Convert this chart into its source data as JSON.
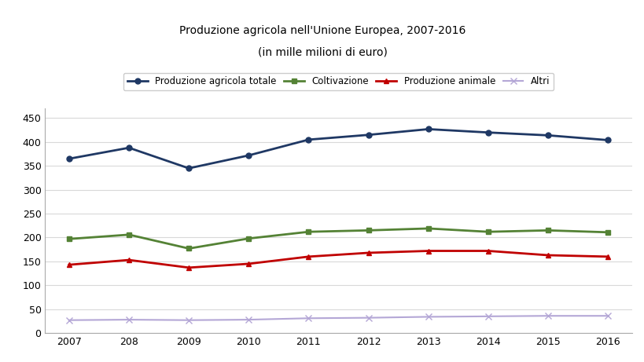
{
  "title_line1": "Produzione agricola nell'Unione Europea, 2007-2016",
  "title_line2": "(in mille milioni di euro)",
  "x_labels": [
    "2007",
    "208",
    "2009",
    "2010",
    "2011",
    "2012",
    "2013",
    "2014",
    "2015",
    "2016"
  ],
  "x_values": [
    0,
    1,
    2,
    3,
    4,
    5,
    6,
    7,
    8,
    9
  ],
  "series": [
    {
      "name": "Produzione agricola totale",
      "values": [
        365,
        388,
        345,
        372,
        405,
        415,
        427,
        420,
        414,
        404
      ],
      "color": "#1f3864",
      "marker": "o",
      "linewidth": 2.0,
      "markersize": 5
    },
    {
      "name": "Coltivazione",
      "values": [
        197,
        206,
        177,
        198,
        212,
        215,
        219,
        212,
        215,
        211
      ],
      "color": "#548235",
      "marker": "s",
      "linewidth": 2.0,
      "markersize": 5
    },
    {
      "name": "Produzione animale",
      "values": [
        143,
        153,
        137,
        145,
        160,
        168,
        172,
        172,
        163,
        160
      ],
      "color": "#c00000",
      "marker": "^",
      "linewidth": 2.0,
      "markersize": 5
    },
    {
      "name": "Altri",
      "values": [
        27,
        28,
        27,
        28,
        31,
        32,
        34,
        35,
        36,
        36
      ],
      "color": "#b4a7d6",
      "marker": "x",
      "linewidth": 1.5,
      "markersize": 6
    }
  ],
  "ylim": [
    0,
    470
  ],
  "yticks": [
    0,
    50,
    100,
    150,
    200,
    250,
    300,
    350,
    400,
    450
  ],
  "background_color": "#ffffff",
  "grid_color": "#d9d9d9",
  "figsize": [
    8.2,
    4.61
  ],
  "dpi": 100
}
